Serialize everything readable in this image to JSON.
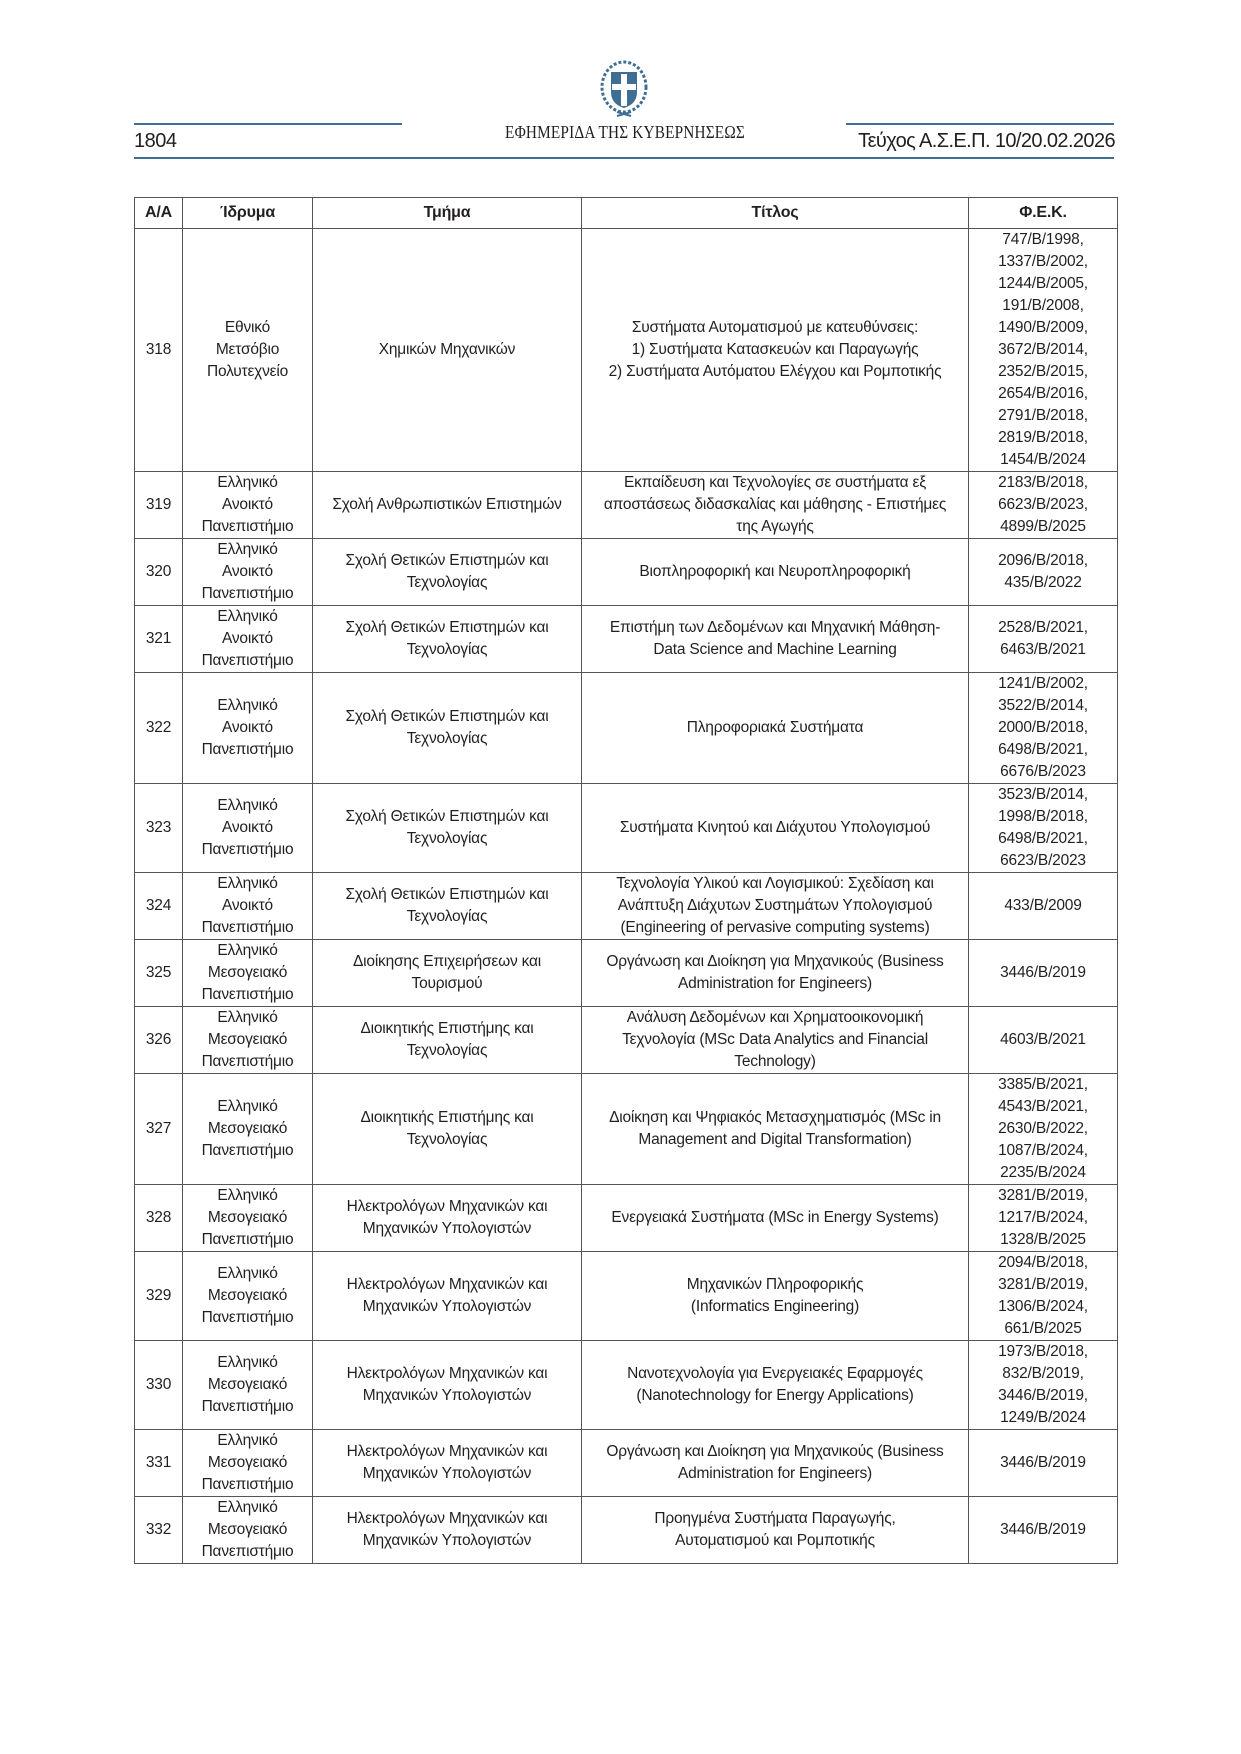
{
  "header": {
    "page_number": "1804",
    "gazette_title": "ΕΦΗΜΕΡΙΔΑ ΤΗΣ ΚΥΒΕΡΝΗΣΕΩΣ",
    "issue": "Τεύχος Α.Σ.Ε.Π. 10/20.02.2026",
    "emblem_icon": "greek-coat-of-arms",
    "accent_color": "#3f6e95"
  },
  "table": {
    "columns": [
      "Α/Α",
      "Ίδρυμα",
      "Τμήμα",
      "Τίτλος",
      "Φ.Ε.Κ."
    ],
    "rows": [
      {
        "aa": "318",
        "institution": "Εθνικό\nΜετσόβιο\nΠολυτεχνείο",
        "department": "Χημικών Μηχανικών",
        "title": "Συστήματα Αυτοματισμού με κατευθύνσεις:\n1) Συστήματα Κατασκευών και Παραγωγής\n2) Συστήματα Αυτόματου Ελέγχου και Ρομποτικής",
        "fek": "747/B/1998,\n1337/B/2002,\n1244/B/2005,\n191/B/2008,\n1490/B/2009,\n3672/B/2014,\n2352/B/2015,\n2654/B/2016,\n2791/B/2018,\n2819/B/2018,\n1454/B/2024"
      },
      {
        "aa": "319",
        "institution": "Ελληνικό\nΑνοικτό\nΠανεπιστήμιο",
        "department": "Σχολή Ανθρωπιστικών Επιστημών",
        "title": "Εκπαίδευση και Τεχνολογίες σε συστήματα εξ\nαποστάσεως διδασκαλίας και μάθησης - Επιστήμες\nτης Αγωγής",
        "fek": "2183/B/2018,\n6623/B/2023,\n4899/B/2025"
      },
      {
        "aa": "320",
        "institution": "Ελληνικό\nΑνοικτό\nΠανεπιστήμιο",
        "department": "Σχολή Θετικών Επιστημών και\nΤεχνολογίας",
        "title": "Βιοπληροφορική και Νευροπληροφορική",
        "fek": "2096/B/2018,\n435/B/2022"
      },
      {
        "aa": "321",
        "institution": "Ελληνικό\nΑνοικτό\nΠανεπιστήμιο",
        "department": "Σχολή Θετικών Επιστημών και\nΤεχνολογίας",
        "title": "Επιστήμη των Δεδομένων και Μηχανική Μάθηση-\nData Science and Machine Learning",
        "fek": "2528/B/2021,\n6463/B/2021"
      },
      {
        "aa": "322",
        "institution": "Ελληνικό\nΑνοικτό\nΠανεπιστήμιο",
        "department": "Σχολή Θετικών Επιστημών και\nΤεχνολογίας",
        "title": "Πληροφοριακά Συστήματα",
        "fek": "1241/B/2002,\n3522/B/2014,\n2000/B/2018,\n6498/B/2021,\n6676/B/2023"
      },
      {
        "aa": "323",
        "institution": "Ελληνικό\nΑνοικτό\nΠανεπιστήμιο",
        "department": "Σχολή Θετικών Επιστημών και\nΤεχνολογίας",
        "title": "Συστήματα Κινητού και Διάχυτου Υπολογισμού",
        "fek": "3523/B/2014,\n1998/B/2018,\n6498/B/2021,\n6623/B/2023"
      },
      {
        "aa": "324",
        "institution": "Ελληνικό\nΑνοικτό\nΠανεπιστήμιο",
        "department": "Σχολή Θετικών Επιστημών και\nΤεχνολογίας",
        "title": "Τεχνολογία Υλικού και Λογισμικού: Σχεδίαση και\nΑνάπτυξη Διάχυτων Συστημάτων Υπολογισμού\n(Engineering of pervasive computing systems)",
        "fek": "433/B/2009"
      },
      {
        "aa": "325",
        "institution": "Ελληνικό\nΜεσογειακό\nΠανεπιστήμιο",
        "department": "Διοίκησης Επιχειρήσεων και\nΤουρισμού",
        "title": "Οργάνωση και Διοίκηση για Μηχανικούς (Business\nAdministration for Engineers)",
        "fek": "3446/B/2019"
      },
      {
        "aa": "326",
        "institution": "Ελληνικό\nΜεσογειακό\nΠανεπιστήμιο",
        "department": "Διοικητικής Επιστήμης και\nΤεχνολογίας",
        "title": "Ανάλυση Δεδομένων και Χρηματοοικονομική\nΤεχνολογία (MSc Data Analytics and Financial\nTechnology)",
        "fek": "4603/B/2021"
      },
      {
        "aa": "327",
        "institution": "Ελληνικό\nΜεσογειακό\nΠανεπιστήμιο",
        "department": "Διοικητικής Επιστήμης και\nΤεχνολογίας",
        "title": "Διοίκηση και Ψηφιακός Μετασχηματισμός (MSc in\nManagement and Digital Transformation)",
        "fek": "3385/B/2021,\n4543/B/2021,\n2630/B/2022,\n1087/B/2024,\n2235/B/2024"
      },
      {
        "aa": "328",
        "institution": "Ελληνικό\nΜεσογειακό\nΠανεπιστήμιο",
        "department": "Ηλεκτρολόγων Μηχανικών και\nΜηχανικών Υπολογιστών",
        "title": "Ενεργειακά Συστήματα (MSc in Energy Systems)",
        "fek": "3281/B/2019,\n1217/B/2024,\n1328/B/2025"
      },
      {
        "aa": "329",
        "institution": "Ελληνικό\nΜεσογειακό\nΠανεπιστήμιο",
        "department": "Ηλεκτρολόγων Μηχανικών και\nΜηχανικών Υπολογιστών",
        "title": "Μηχανικών Πληροφορικής\n(Informatics Engineering)",
        "fek": "2094/B/2018,\n3281/B/2019,\n1306/B/2024,\n661/B/2025"
      },
      {
        "aa": "330",
        "institution": "Ελληνικό\nΜεσογειακό\nΠανεπιστήμιο",
        "department": "Ηλεκτρολόγων Μηχανικών και\nΜηχανικών Υπολογιστών",
        "title": "Νανοτεχνολογία για Ενεργειακές Εφαρμογές\n(Nanotechnology for Energy Applications)",
        "fek": "1973/B/2018,\n832/B/2019,\n3446/B/2019,\n1249/B/2024"
      },
      {
        "aa": "331",
        "institution": "Ελληνικό\nΜεσογειακό\nΠανεπιστήμιο",
        "department": "Ηλεκτρολόγων Μηχανικών και\nΜηχανικών Υπολογιστών",
        "title": "Οργάνωση και Διοίκηση για Μηχανικούς (Business\nAdministration for Engineers)",
        "fek": "3446/B/2019"
      },
      {
        "aa": "332",
        "institution": "Ελληνικό\nΜεσογειακό\nΠανεπιστήμιο",
        "department": "Ηλεκτρολόγων Μηχανικών και\nΜηχανικών Υπολογιστών",
        "title": "Προηγμένα Συστήματα Παραγωγής,\nΑυτοματισμού και Ρομποτικής",
        "fek": "3446/B/2019"
      }
    ]
  }
}
